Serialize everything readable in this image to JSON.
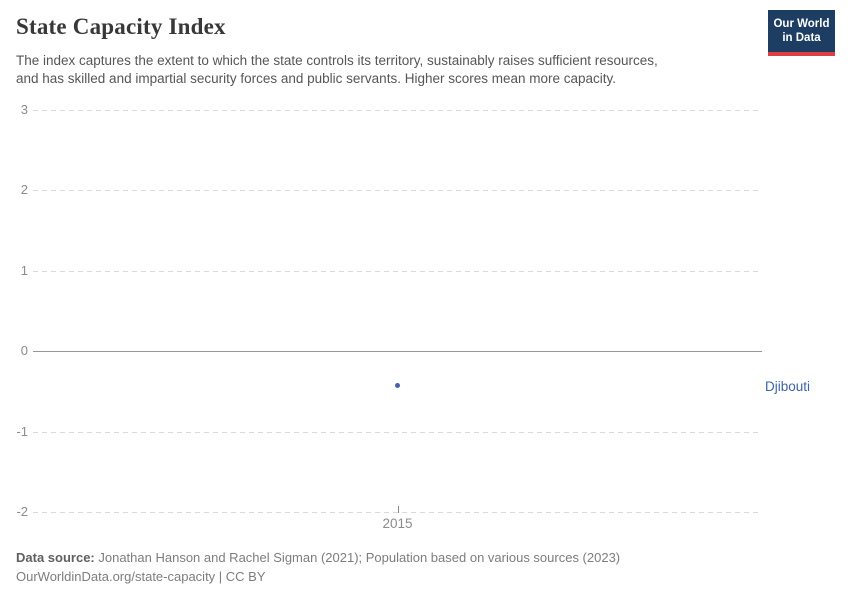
{
  "header": {
    "title": "State Capacity Index",
    "subtitle_lines": [
      "The index captures the extent to which the state controls its territory, sustainably raises sufficient resources,",
      "and has skilled and impartial security forces and public servants. Higher scores mean more capacity."
    ],
    "logo_line1": "Our World",
    "logo_line2": "in Data"
  },
  "chart_data": {
    "type": "scatter",
    "title": "State Capacity Index",
    "series": [
      {
        "name": "Djibouti",
        "x": [
          2015
        ],
        "values": [
          -0.43
        ],
        "color": "#4465a6"
      }
    ],
    "xticks": [
      "2015"
    ],
    "yticks": [
      3,
      2,
      1,
      0,
      -1,
      -2
    ],
    "ylim": [
      -2,
      3
    ],
    "grid": true,
    "zero_line": true,
    "entity_label": "Djibouti",
    "legend_position": "right-of-plot"
  },
  "footer": {
    "source_label": "Data source:",
    "source_text": " Jonathan Hanson and Rachel Sigman (2021); Population based on various sources (2023)",
    "license_line": "OurWorldinData.org/state-capacity | CC BY"
  },
  "colors": {
    "series_blue": "#4465a6",
    "entity_label_blue": "#3d64a9",
    "logo_background": "#1d3d63",
    "logo_stripe": "#dc3e45",
    "grid_gray": "#d9d9d9",
    "zero_line_gray": "#979797",
    "axis_text_gray": "#8c8c8c"
  }
}
